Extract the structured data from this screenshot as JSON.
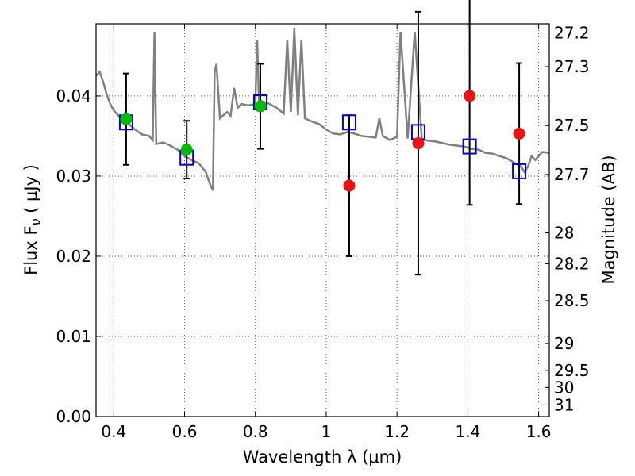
{
  "chart_data": {
    "type": "scatter",
    "xlabel": "Wavelength  λ (μm)",
    "ylabel": "Flux  F",
    "ylabel_sub": "ν",
    "ylabel_unit": " ( μJy )",
    "ylabel_right": "Magnitude (AB)",
    "xlim": [
      0.35,
      1.63
    ],
    "ylim": [
      0.0,
      0.049
    ],
    "grid": true,
    "x_ticks": [
      {
        "value": 0.4,
        "label": "0.4"
      },
      {
        "value": 0.6,
        "label": "0.6"
      },
      {
        "value": 0.8,
        "label": "0.8"
      },
      {
        "value": 1.0,
        "label": "1"
      },
      {
        "value": 1.2,
        "label": "1.2"
      },
      {
        "value": 1.4,
        "label": "1.4"
      },
      {
        "value": 1.6,
        "label": "1.6"
      }
    ],
    "y_ticks": [
      {
        "value": 0.0,
        "label": "0.00"
      },
      {
        "value": 0.01,
        "label": "0.01"
      },
      {
        "value": 0.02,
        "label": "0.02"
      },
      {
        "value": 0.03,
        "label": "0.03"
      },
      {
        "value": 0.04,
        "label": "0.04"
      }
    ],
    "right_ticks": [
      {
        "mag": 27.2,
        "label": "27.2"
      },
      {
        "mag": 27.3,
        "label": "27.3"
      },
      {
        "mag": 27.5,
        "label": "27.5"
      },
      {
        "mag": 27.7,
        "label": "27.7"
      },
      {
        "mag": 28.0,
        "label": "28"
      },
      {
        "mag": 28.2,
        "label": "28.2"
      },
      {
        "mag": 28.5,
        "label": "28.5"
      },
      {
        "mag": 29.0,
        "label": "29"
      },
      {
        "mag": 29.5,
        "label": "29.5"
      },
      {
        "mag": 30.0,
        "label": "30"
      },
      {
        "mag": 31.0,
        "label": "31"
      }
    ],
    "observed_green": [
      {
        "x": 0.435,
        "y": 0.0371,
        "err": 0.0057
      },
      {
        "x": 0.606,
        "y": 0.0333,
        "err": 0.0036
      },
      {
        "x": 0.814,
        "y": 0.0387,
        "err": 0.0053
      }
    ],
    "observed_red": [
      {
        "x": 1.065,
        "y": 0.0288,
        "err": 0.0088
      },
      {
        "x": 1.26,
        "y": 0.0341,
        "err": 0.0164
      },
      {
        "x": 1.405,
        "y": 0.04,
        "err": 0.0136
      },
      {
        "x": 1.545,
        "y": 0.0353,
        "err": 0.0088
      }
    ],
    "model_squares": [
      {
        "x": 0.435,
        "y": 0.0367
      },
      {
        "x": 0.606,
        "y": 0.0323
      },
      {
        "x": 0.814,
        "y": 0.0392
      },
      {
        "x": 1.065,
        "y": 0.0367
      },
      {
        "x": 1.26,
        "y": 0.0355
      },
      {
        "x": 1.405,
        "y": 0.0337
      },
      {
        "x": 1.545,
        "y": 0.0306
      }
    ],
    "spectrum": [
      [
        0.35,
        0.0425
      ],
      [
        0.36,
        0.043
      ],
      [
        0.37,
        0.0418
      ],
      [
        0.38,
        0.0402
      ],
      [
        0.39,
        0.039
      ],
      [
        0.4,
        0.0382
      ],
      [
        0.42,
        0.0372
      ],
      [
        0.44,
        0.0366
      ],
      [
        0.46,
        0.0358
      ],
      [
        0.48,
        0.0352
      ],
      [
        0.5,
        0.035
      ],
      [
        0.51,
        0.0345
      ],
      [
        0.515,
        0.048
      ],
      [
        0.52,
        0.034
      ],
      [
        0.54,
        0.0342
      ],
      [
        0.56,
        0.0338
      ],
      [
        0.58,
        0.0333
      ],
      [
        0.6,
        0.0325
      ],
      [
        0.62,
        0.032
      ],
      [
        0.64,
        0.0316
      ],
      [
        0.66,
        0.0305
      ],
      [
        0.67,
        0.0292
      ],
      [
        0.68,
        0.0282
      ],
      [
        0.685,
        0.043
      ],
      [
        0.69,
        0.044
      ],
      [
        0.7,
        0.0372
      ],
      [
        0.72,
        0.038
      ],
      [
        0.73,
        0.0375
      ],
      [
        0.74,
        0.041
      ],
      [
        0.75,
        0.0385
      ],
      [
        0.76,
        0.039
      ],
      [
        0.78,
        0.0388
      ],
      [
        0.8,
        0.039
      ],
      [
        0.805,
        0.047
      ],
      [
        0.81,
        0.0395
      ],
      [
        0.82,
        0.0393
      ],
      [
        0.84,
        0.039
      ],
      [
        0.86,
        0.0385
      ],
      [
        0.88,
        0.0378
      ],
      [
        0.89,
        0.047
      ],
      [
        0.9,
        0.038
      ],
      [
        0.91,
        0.0485
      ],
      [
        0.92,
        0.0376
      ],
      [
        0.93,
        0.047
      ],
      [
        0.94,
        0.0372
      ],
      [
        0.96,
        0.0368
      ],
      [
        0.98,
        0.0365
      ],
      [
        1.0,
        0.0358
      ],
      [
        1.02,
        0.0353
      ],
      [
        1.04,
        0.0352
      ],
      [
        1.06,
        0.0355
      ],
      [
        1.08,
        0.0353
      ],
      [
        1.1,
        0.035
      ],
      [
        1.12,
        0.0349
      ],
      [
        1.14,
        0.0348
      ],
      [
        1.15,
        0.0372
      ],
      [
        1.16,
        0.035
      ],
      [
        1.18,
        0.0345
      ],
      [
        1.2,
        0.0349
      ],
      [
        1.21,
        0.048
      ],
      [
        1.23,
        0.0347
      ],
      [
        1.25,
        0.048
      ],
      [
        1.27,
        0.0346
      ],
      [
        1.29,
        0.0344
      ],
      [
        1.31,
        0.0343
      ],
      [
        1.33,
        0.0341
      ],
      [
        1.35,
        0.0339
      ],
      [
        1.37,
        0.0338
      ],
      [
        1.39,
        0.0337
      ],
      [
        1.41,
        0.0334
      ],
      [
        1.43,
        0.0333
      ],
      [
        1.45,
        0.0329
      ],
      [
        1.47,
        0.0328
      ],
      [
        1.49,
        0.0325
      ],
      [
        1.51,
        0.0322
      ],
      [
        1.53,
        0.0317
      ],
      [
        1.55,
        0.0312
      ],
      [
        1.56,
        0.0305
      ],
      [
        1.57,
        0.0312
      ],
      [
        1.58,
        0.0325
      ],
      [
        1.59,
        0.032
      ],
      [
        1.6,
        0.0325
      ],
      [
        1.61,
        0.033
      ],
      [
        1.63,
        0.0329
      ]
    ],
    "colors": {
      "spectrum": "#808080",
      "green_marker": "#00bb00",
      "red_marker": "#ee1111",
      "square_edge": "#0000dd",
      "errorbar": "#000000",
      "grid": "#555555"
    }
  }
}
